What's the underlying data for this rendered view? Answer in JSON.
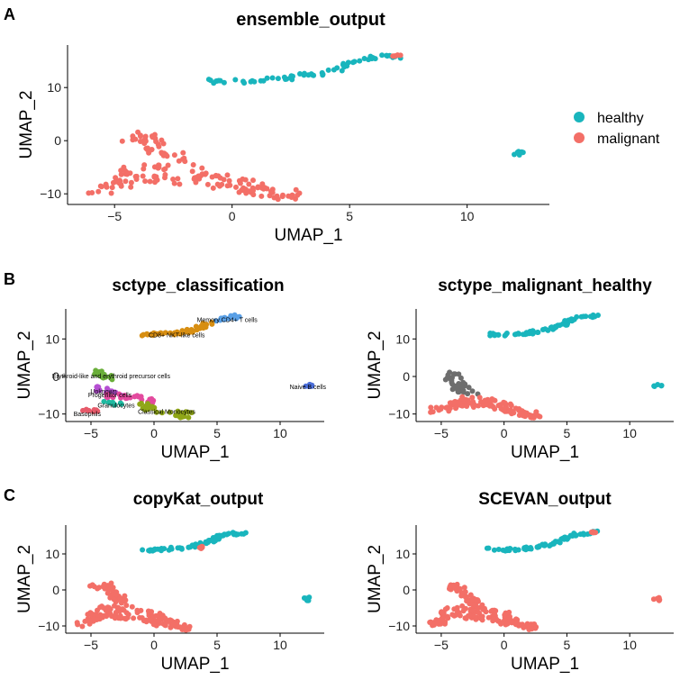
{
  "panels": [
    {
      "letter": "A"
    },
    {
      "letter": "B"
    },
    {
      "letter": "C"
    }
  ],
  "colors": {
    "healthy": "#19B5BD",
    "malignant": "#F36F67",
    "unknown_gray": "#6E6E6E"
  },
  "legend": {
    "placement": "right",
    "entries": [
      {
        "label": "healthy",
        "color": "#19B5BD"
      },
      {
        "label": "malignant",
        "color": "#F36F67"
      }
    ]
  },
  "chart_data": [
    {
      "id": "ensemble",
      "type": "scatter",
      "title": "ensemble_output",
      "xlabel": "UMAP_1",
      "ylabel": "UMAP_2",
      "xlim": [
        -7,
        13.5
      ],
      "ylim": [
        -12,
        18
      ],
      "xticks": [
        "−5",
        "0",
        "5",
        "10"
      ],
      "xtick_values": [
        -5,
        0,
        5,
        10
      ],
      "yticks": [
        "−10",
        "0",
        "10"
      ],
      "ytick_values": [
        -10,
        0,
        10
      ],
      "grid": false,
      "clusters": [
        {
          "series": "healthy",
          "shape": "band",
          "points": [
            [
              -1.2,
              11.2
            ],
            [
              0.5,
              11.2
            ],
            [
              2.0,
              11.6
            ],
            [
              3.5,
              12.6
            ],
            [
              4.5,
              13.5
            ],
            [
              5.2,
              15.0
            ],
            [
              6.0,
              15.6
            ],
            [
              7.3,
              16.0
            ]
          ],
          "spread": 0.8
        },
        {
          "series": "healthy",
          "shape": "blob",
          "cx": 12.2,
          "cy": -2.5,
          "rx": 0.35,
          "ry": 0.5
        },
        {
          "series": "malignant",
          "shape": "band",
          "points": [
            [
              -6.0,
              -9.3
            ],
            [
              -5.0,
              -9.0
            ],
            [
              -4.5,
              -6.0
            ],
            [
              -3.5,
              -5.0
            ],
            [
              -1.5,
              -6.0
            ],
            [
              0.5,
              -7.5
            ],
            [
              1.5,
              -9.5
            ],
            [
              2.7,
              -10.5
            ]
          ],
          "spread": 1.8
        },
        {
          "series": "malignant",
          "shape": "band",
          "points": [
            [
              -4.8,
              0.5
            ],
            [
              -3.8,
              1.2
            ],
            [
              -3.2,
              -1.5
            ],
            [
              -2.0,
              -4.0
            ]
          ],
          "spread": 1.6
        },
        {
          "series": "malignant",
          "shape": "band",
          "points": [
            [
              -4.0,
              -7.0
            ],
            [
              -1.0,
              -8.0
            ],
            [
              1.0,
              -9.8
            ],
            [
              2.6,
              -10.8
            ]
          ],
          "spread": 1.2
        },
        {
          "series": "malignant",
          "shape": "blob",
          "cx": 7.0,
          "cy": 15.9,
          "rx": 0.2,
          "ry": 0.3
        }
      ]
    },
    {
      "id": "sctype_class",
      "type": "scatter",
      "title": "sctype_classification",
      "xlabel": "UMAP_1",
      "ylabel": "UMAP_2",
      "xlim": [
        -7,
        13.5
      ],
      "ylim": [
        -12,
        18
      ],
      "xticks": [
        "−5",
        "0",
        "5",
        "10"
      ],
      "xtick_values": [
        -5,
        0,
        5,
        10
      ],
      "yticks": [
        "10",
        "0",
        "−10"
      ],
      "ytick_values": [
        10,
        0,
        -10
      ],
      "grid": false,
      "clusters": [
        {
          "series": "Memory CD4+ T cells",
          "color": "#5AA0E6",
          "shape": "band",
          "points": [
            [
              5.0,
              15.2
            ],
            [
              6.0,
              15.8
            ],
            [
              7.0,
              16.0
            ]
          ],
          "spread": 1.0
        },
        {
          "series": "CD8+ NKT-like cells",
          "color": "#D78E12",
          "shape": "band",
          "points": [
            [
              -1.2,
              11.2
            ],
            [
              1.0,
              11.3
            ],
            [
              3.0,
              12.2
            ],
            [
              4.8,
              14.8
            ]
          ],
          "spread": 1.1
        },
        {
          "series": "Erythroid-like and erythroid precursor cells",
          "color": "#6AAE3A",
          "shape": "band",
          "points": [
            [
              -5.0,
              0.6
            ],
            [
              -4.0,
              1.0
            ],
            [
              -3.5,
              -1.0
            ]
          ],
          "spread": 1.6
        },
        {
          "series": "Unknown",
          "color": "#B54FD2",
          "shape": "band",
          "points": [
            [
              -4.8,
              -3.0
            ],
            [
              -3.5,
              -3.8
            ],
            [
              -2.5,
              -4.5
            ]
          ],
          "spread": 1.4
        },
        {
          "series": "Progenitor cells",
          "color": "#E34A9E",
          "shape": "band",
          "points": [
            [
              -4.0,
              -5.0
            ],
            [
              -2.0,
              -5.5
            ],
            [
              0.0,
              -6.5
            ]
          ],
          "spread": 1.5
        },
        {
          "series": "Granulocytes",
          "color": "#1FB9A0",
          "shape": "band",
          "points": [
            [
              -4.0,
              -7.0
            ],
            [
              -2.5,
              -7.5
            ]
          ],
          "spread": 1.2
        },
        {
          "series": "Classical Monocytes",
          "color": "#8FA617",
          "shape": "band",
          "points": [
            [
              -1.5,
              -7.5
            ],
            [
              0.5,
              -8.8
            ],
            [
              2.7,
              -10.3
            ]
          ],
          "spread": 1.6
        },
        {
          "series": "Basophils",
          "color": "#E65A6A",
          "shape": "band",
          "points": [
            [
              -6.0,
              -9.5
            ],
            [
              -4.5,
              -9.0
            ]
          ],
          "spread": 0.9
        },
        {
          "series": "Naive B cells",
          "color": "#4B6ED8",
          "shape": "blob",
          "cx": 12.2,
          "cy": -2.5,
          "rx": 0.35,
          "ry": 0.5
        }
      ],
      "annotations": [
        {
          "text": "Memory CD4+ T cells",
          "x": 5.8,
          "y": 15.3
        },
        {
          "text": "CD8+ NKT-like cells",
          "x": 1.8,
          "y": 11.2
        },
        {
          "text": "Erythroid-like and erythroid precursor cells",
          "x": -3.4,
          "y": 0.3
        },
        {
          "text": "Naive B cells",
          "x": 12.2,
          "y": -2.6
        },
        {
          "text": "Unknown",
          "x": -4.0,
          "y": -3.8
        },
        {
          "text": "Progenitor cells",
          "x": -3.5,
          "y": -4.8
        },
        {
          "text": "Granulocytes",
          "x": -3.0,
          "y": -7.6
        },
        {
          "text": "Classical Monocytes",
          "x": 1.0,
          "y": -9.2
        },
        {
          "text": "Basophils",
          "x": -5.3,
          "y": -9.8
        }
      ]
    },
    {
      "id": "sctype_mh",
      "type": "scatter",
      "title": "sctype_malignant_healthy",
      "xlabel": "UMAP_1",
      "ylabel": "UMAP_2",
      "xlim": [
        -7,
        13.5
      ],
      "ylim": [
        -12,
        18
      ],
      "xticks": [
        "−5",
        "0",
        "5",
        "10"
      ],
      "xtick_values": [
        -5,
        0,
        5,
        10
      ],
      "yticks": [
        "10",
        "0",
        "−10"
      ],
      "ytick_values": [
        10,
        0,
        -10
      ],
      "grid": false,
      "clusters": [
        {
          "series": "healthy",
          "shape": "band",
          "points": [
            [
              -1.2,
              11.2
            ],
            [
              0.5,
              11.2
            ],
            [
              2.0,
              11.6
            ],
            [
              3.5,
              12.6
            ],
            [
              4.5,
              13.5
            ],
            [
              5.2,
              15.0
            ],
            [
              6.0,
              15.6
            ],
            [
              7.3,
              16.0
            ]
          ],
          "spread": 0.8
        },
        {
          "series": "healthy",
          "shape": "blob",
          "cx": 12.2,
          "cy": -2.5,
          "rx": 0.35,
          "ry": 0.5
        },
        {
          "series": "unknown",
          "color": "#6E6E6E",
          "shape": "band",
          "points": [
            [
              -5.0,
              0.5
            ],
            [
              -4.0,
              0.0
            ],
            [
              -3.5,
              -3.0
            ],
            [
              -2.5,
              -4.5
            ]
          ],
          "spread": 1.9
        },
        {
          "series": "malignant",
          "shape": "band",
          "points": [
            [
              -6.0,
              -9.3
            ],
            [
              -4.5,
              -8.5
            ],
            [
              -3.0,
              -6.0
            ],
            [
              -1.5,
              -6.5
            ],
            [
              0.5,
              -7.8
            ],
            [
              1.5,
              -9.5
            ],
            [
              2.7,
              -10.5
            ]
          ],
          "spread": 1.6
        },
        {
          "series": "malignant",
          "shape": "band",
          "points": [
            [
              -4.5,
              -7.0
            ],
            [
              -1.0,
              -8.0
            ],
            [
              1.0,
              -9.8
            ],
            [
              2.6,
              -10.8
            ]
          ],
          "spread": 1.1
        }
      ]
    },
    {
      "id": "copykat",
      "type": "scatter",
      "title": "copyKat_output",
      "xlabel": "UMAP_1",
      "ylabel": "UMAP_2",
      "xlim": [
        -7,
        13.5
      ],
      "ylim": [
        -12,
        18
      ],
      "xticks": [
        "−5",
        "0",
        "5",
        "10"
      ],
      "xtick_values": [
        -5,
        0,
        5,
        10
      ],
      "yticks": [
        "10",
        "0",
        "−10"
      ],
      "ytick_values": [
        10,
        0,
        -10
      ],
      "grid": false,
      "clusters": [
        {
          "series": "healthy",
          "shape": "band",
          "points": [
            [
              -1.2,
              11.2
            ],
            [
              0.5,
              11.2
            ],
            [
              2.0,
              11.6
            ],
            [
              3.5,
              12.6
            ],
            [
              4.5,
              13.5
            ],
            [
              5.2,
              15.0
            ],
            [
              6.0,
              15.6
            ],
            [
              7.3,
              16.0
            ]
          ],
          "spread": 0.8
        },
        {
          "series": "healthy",
          "shape": "blob",
          "cx": 12.2,
          "cy": -2.5,
          "rx": 0.35,
          "ry": 0.5
        },
        {
          "series": "malignant",
          "shape": "band",
          "points": [
            [
              -6.0,
              -9.3
            ],
            [
              -5.0,
              -9.0
            ],
            [
              -4.5,
              -6.0
            ],
            [
              -3.5,
              -5.0
            ],
            [
              -1.5,
              -6.0
            ],
            [
              0.5,
              -7.5
            ],
            [
              1.5,
              -9.5
            ],
            [
              2.7,
              -10.5
            ]
          ],
          "spread": 1.8
        },
        {
          "series": "malignant",
          "shape": "band",
          "points": [
            [
              -4.8,
              0.5
            ],
            [
              -3.8,
              1.2
            ],
            [
              -3.2,
              -1.5
            ],
            [
              -2.0,
              -4.0
            ]
          ],
          "spread": 1.6
        },
        {
          "series": "malignant",
          "shape": "band",
          "points": [
            [
              -4.0,
              -7.0
            ],
            [
              -1.0,
              -8.0
            ],
            [
              1.0,
              -9.8
            ],
            [
              2.6,
              -10.8
            ]
          ],
          "spread": 1.2
        },
        {
          "series": "malignant",
          "shape": "blob",
          "cx": 3.6,
          "cy": 11.8,
          "rx": 0.3,
          "ry": 0.4
        }
      ]
    },
    {
      "id": "scevan",
      "type": "scatter",
      "title": "SCEVAN_output",
      "xlabel": "UMAP_1",
      "ylabel": "UMAP_2",
      "xlim": [
        -7,
        13.5
      ],
      "ylim": [
        -12,
        18
      ],
      "xticks": [
        "−5",
        "0",
        "5",
        "10"
      ],
      "xtick_values": [
        -5,
        0,
        5,
        10
      ],
      "yticks": [
        "10",
        "0",
        "−10"
      ],
      "ytick_values": [
        10,
        0,
        -10
      ],
      "grid": false,
      "clusters": [
        {
          "series": "healthy",
          "shape": "band",
          "points": [
            [
              -1.2,
              11.2
            ],
            [
              0.5,
              11.2
            ],
            [
              2.0,
              11.6
            ],
            [
              3.5,
              12.6
            ],
            [
              4.5,
              13.5
            ],
            [
              5.2,
              15.0
            ],
            [
              6.0,
              15.6
            ],
            [
              7.3,
              16.0
            ]
          ],
          "spread": 0.8
        },
        {
          "series": "malignant",
          "shape": "blob",
          "cx": 12.2,
          "cy": -2.5,
          "rx": 0.35,
          "ry": 0.5
        },
        {
          "series": "malignant",
          "shape": "band",
          "points": [
            [
              -6.0,
              -9.3
            ],
            [
              -5.0,
              -9.0
            ],
            [
              -4.5,
              -6.0
            ],
            [
              -3.5,
              -5.0
            ],
            [
              -1.5,
              -6.0
            ],
            [
              0.5,
              -7.5
            ],
            [
              1.5,
              -9.5
            ],
            [
              2.7,
              -10.5
            ]
          ],
          "spread": 1.8
        },
        {
          "series": "malignant",
          "shape": "band",
          "points": [
            [
              -4.8,
              0.5
            ],
            [
              -3.8,
              1.2
            ],
            [
              -3.2,
              -1.5
            ],
            [
              -2.0,
              -4.0
            ]
          ],
          "spread": 1.6
        },
        {
          "series": "malignant",
          "shape": "band",
          "points": [
            [
              -4.0,
              -7.0
            ],
            [
              -1.0,
              -8.0
            ],
            [
              1.0,
              -9.8
            ],
            [
              2.6,
              -10.8
            ]
          ],
          "spread": 1.2
        },
        {
          "series": "malignant",
          "shape": "blob",
          "cx": 7.1,
          "cy": 15.9,
          "rx": 0.2,
          "ry": 0.3
        }
      ]
    }
  ]
}
